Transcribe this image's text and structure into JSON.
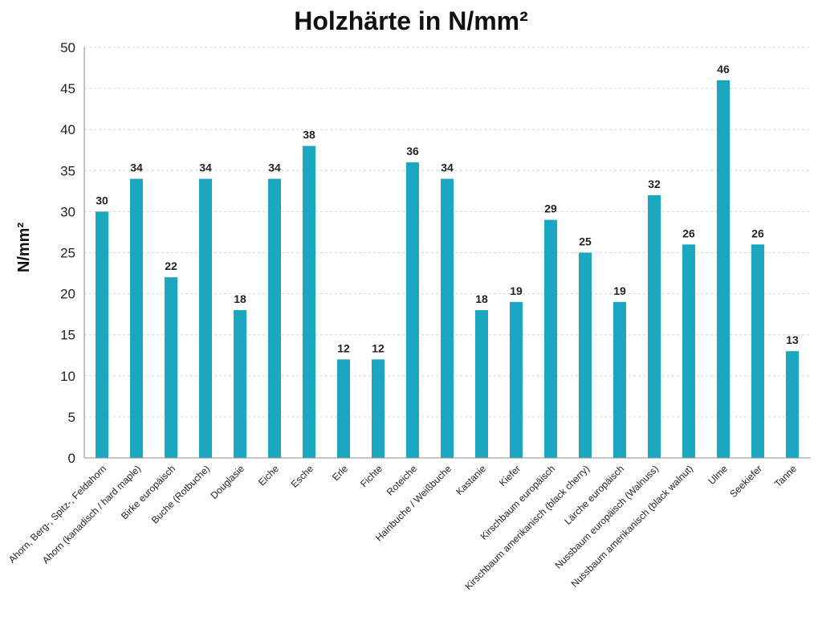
{
  "chart_data": {
    "type": "bar",
    "title": "Holzhärte in N/mm²",
    "xlabel": "",
    "ylabel": "N/mm²",
    "ylim": [
      0,
      50
    ],
    "yticks": [
      0,
      5,
      10,
      15,
      20,
      25,
      30,
      35,
      40,
      45,
      50
    ],
    "grid": true,
    "bar_color": "#1aa7bf",
    "categories": [
      "Ahorn, Berg-, Spitz-, Feldahorn",
      "Ahorn (kanadisch / hard maple)",
      "Birke europäisch",
      "Buche (Rotbuche)",
      "Douglasie",
      "Eiche",
      "Esche",
      "Erle",
      "Fichte",
      "Roteiche",
      "Hainbuche / Weißbuche",
      "Kastanie",
      "Kiefer",
      "Kirschbaum europäisch",
      "Kirschbaum amerikanisch (black cherry)",
      "Lärche europäisch",
      "Nussbaum europäisch (Walnuss)",
      "Nussbaum amerikanisch (black walnut)",
      "Ulme",
      "Seekiefer",
      "Tanne"
    ],
    "values": [
      30,
      34,
      22,
      34,
      18,
      34,
      38,
      12,
      12,
      36,
      34,
      18,
      19,
      29,
      25,
      19,
      32,
      26,
      46,
      26,
      13
    ],
    "data_labels": [
      "30",
      "34",
      "22",
      "34",
      "18",
      "34",
      "38",
      "12",
      "12",
      "36",
      "34",
      "18",
      "19",
      "29",
      "25",
      "19",
      "32",
      "26",
      "46",
      "26",
      "13"
    ]
  }
}
